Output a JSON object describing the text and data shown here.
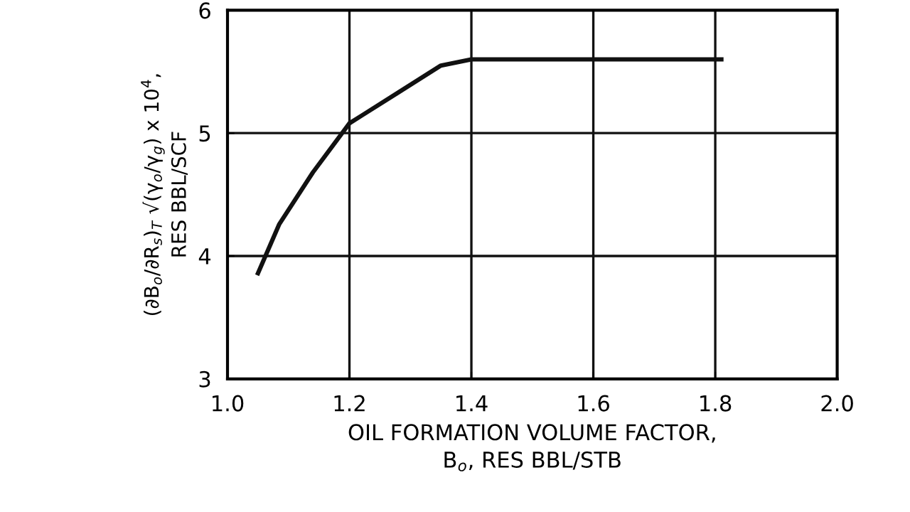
{
  "chart_data": {
    "type": "line",
    "xlabel": "OIL FORMATION VOLUME FACTOR,\nB$_{o}$, RES BBL/STB",
    "ylabel": "(∂B$_{o}$/∂R$_{s}$)$_{T}$ √(γ$_{o}$/γ$_{g}$) x 10$^{4}$,\nRES BBL/SCF",
    "series": [
      {
        "color": "#111111",
        "x": [
          1.05,
          1.085,
          1.14,
          1.2,
          1.28,
          1.35,
          1.4,
          1.6,
          1.81
        ],
        "values": [
          3.86,
          4.26,
          4.68,
          5.08,
          5.33,
          5.55,
          5.6,
          5.6,
          5.6
        ]
      }
    ],
    "xlim": [
      1.0,
      2.0
    ],
    "xticks": [
      {
        "value": 1,
        "label": "1.0"
      },
      1.2,
      1.4,
      1.6,
      1.8,
      {
        "value": 2,
        "label": "2.0"
      }
    ],
    "ylim": [
      3,
      6
    ],
    "yticks": [
      3,
      4,
      5,
      6
    ],
    "grid": true,
    "marker": "none",
    "line_style": "solid"
  }
}
